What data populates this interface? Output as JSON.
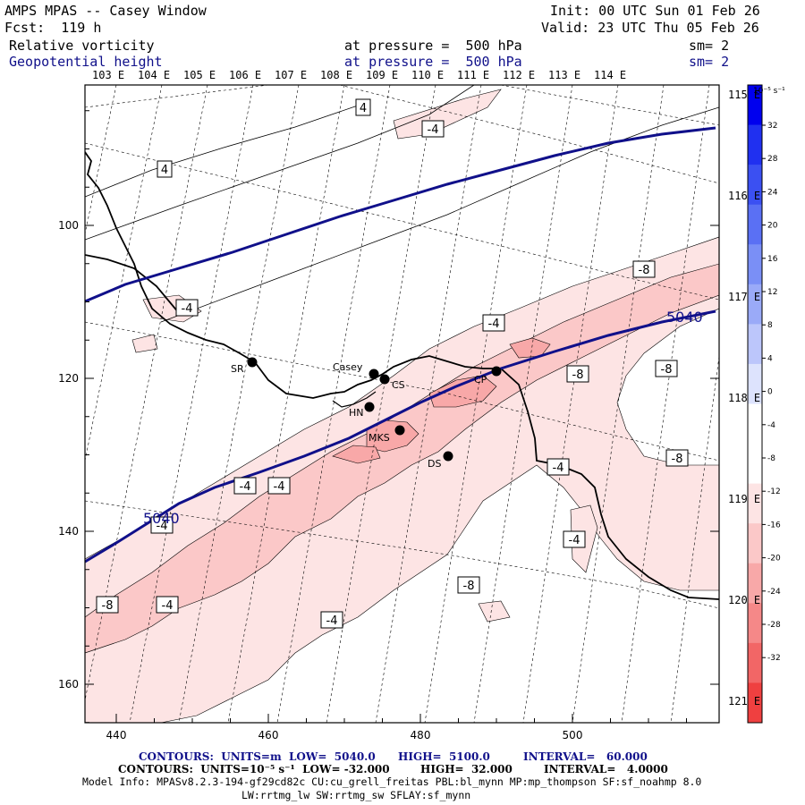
{
  "header": {
    "title": "AMPS MPAS -- Casey Window",
    "init": "Init: 00 UTC Sun 01 Feb 26",
    "fcst": "Fcst:  119 h",
    "valid": "Valid: 23 UTC Thu 05 Feb 26",
    "field1_name": "Relative vorticity",
    "field1_level": "at pressure =  500 hPa",
    "field1_sm": "sm= 2",
    "field2_name": "Geopotential height",
    "field2_level": "at pressure =  500 hPa",
    "field2_sm": "sm= 2"
  },
  "top_lon_labels": [
    "103 E",
    "104 E",
    "105 E",
    "106 E",
    "107 E",
    "108 E",
    "109 E",
    "110 E",
    "111 E",
    "112 E",
    "113 E",
    "114 E"
  ],
  "right_lon_labels": [
    "115 E",
    "116 E",
    "117 E",
    "118 E",
    "119 E",
    "120 E",
    "121 E"
  ],
  "x_ticks": [
    "440",
    "460",
    "480",
    "500"
  ],
  "y_ticks": [
    "100",
    "120",
    "140",
    "160"
  ],
  "colorbar": {
    "unit": "10⁻⁵ s⁻¹",
    "labels": [
      "32",
      "28",
      "24",
      "20",
      "16",
      "12",
      "8",
      "4",
      "0",
      "-4",
      "-8",
      "-12",
      "-16",
      "-20",
      "-24",
      "-28",
      "-32"
    ],
    "colors": [
      "#0000ee",
      "#2030f0",
      "#3b50f2",
      "#5a70f4",
      "#7a8ff6",
      "#9aaaf8",
      "#bcc6fb",
      "#dde3fd",
      "#ffffff",
      "#ffffff",
      "#fde4e4",
      "#fbc8c8",
      "#f8a8a8",
      "#f58888",
      "#f26666",
      "#ef4040",
      "#ee0000"
    ]
  },
  "stations": [
    {
      "label": "SR"
    },
    {
      "label": "Casey"
    },
    {
      "label": "CS"
    },
    {
      "label": "CP"
    },
    {
      "label": "HN"
    },
    {
      "label": "MKS"
    },
    {
      "label": "DS"
    }
  ],
  "contour_labels": [
    "4",
    "4",
    "-4",
    "-4",
    "-8",
    "-4",
    "-8",
    "-8",
    "-4",
    "-4",
    "-8",
    "-4",
    "-4",
    "-8",
    "-4",
    "-8",
    "-4",
    "-4"
  ],
  "height_labels": [
    "5040",
    "5040"
  ],
  "footer": {
    "line1_units": "CONTOURS:  UNITS=m  LOW=  5040.0",
    "line1_high": "HIGH=  5100.0",
    "line1_interval": "INTERVAL=   60.000",
    "line2_units": "CONTOURS:  UNITS=10⁻⁵ s⁻¹  LOW= -32.000",
    "line2_high": "HIGH=  32.000",
    "line2_interval": "INTERVAL=   4.0000",
    "model_info": "Model Info: MPASv8.2.3-194-gf29cd82c CU:cu_grell_freitas PBL:bl_mynn MP:mp_thompson SF:sf_noahmp 8.0",
    "model_info2": "LW:rrtmg_lw SW:rrtmg_sw SFLAY:sf_mynn"
  }
}
